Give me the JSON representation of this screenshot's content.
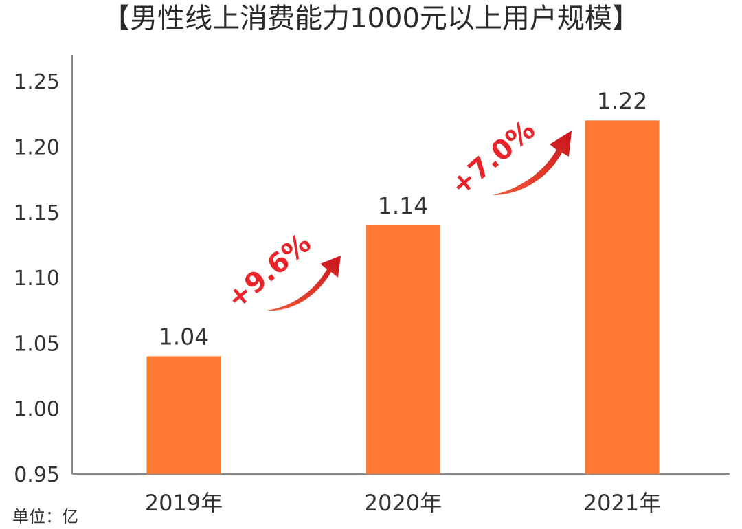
{
  "chart_data": {
    "type": "bar",
    "title": "【男性线上消费能力1000元以上用户规模】",
    "categories": [
      "2019年",
      "2020年",
      "2021年"
    ],
    "values": [
      1.04,
      1.14,
      1.22
    ],
    "value_labels": [
      "1.04",
      "1.14",
      "1.22"
    ],
    "ylim": [
      0.95,
      1.27
    ],
    "yticks": [
      "0.95",
      "1.00",
      "1.05",
      "1.10",
      "1.15",
      "1.20",
      "1.25"
    ],
    "unit_label": "单位：亿",
    "grid": false,
    "growth_annotations": [
      {
        "text": "+9.6%",
        "from": "2019年",
        "to": "2020年"
      },
      {
        "text": "+7.0%",
        "from": "2020年",
        "to": "2021年"
      }
    ],
    "colors": {
      "bar": "#ff7a33",
      "growth": "#e8232a",
      "axis": "#888888"
    }
  }
}
